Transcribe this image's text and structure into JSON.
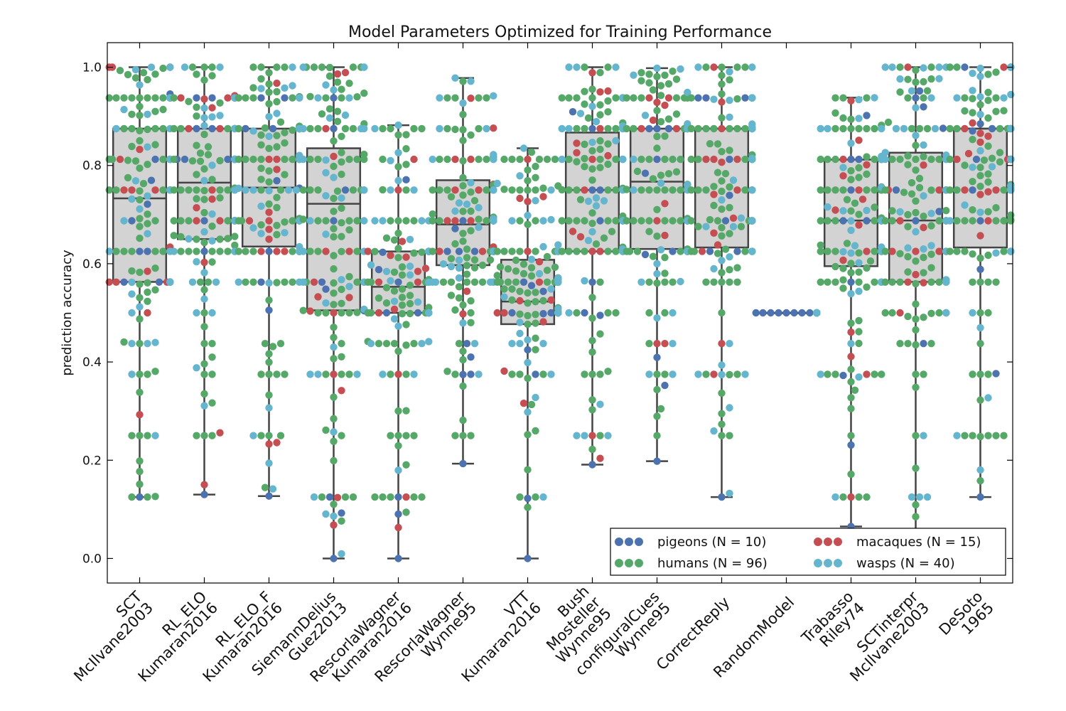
{
  "chart_data": {
    "type": "box-swarm",
    "title": "Model Parameters Optimized for Training Performance",
    "ylabel": "prediction accuracy",
    "xlabel": "",
    "ylim": [
      -0.05,
      1.05
    ],
    "yticks": [
      0.0,
      0.2,
      0.4,
      0.6,
      0.8,
      1.0
    ],
    "ytick_labels": [
      "0.0",
      "0.2",
      "0.4",
      "0.6",
      "0.8",
      "1.0"
    ],
    "grid": false,
    "legend_position": "lower right",
    "legend": [
      {
        "key": "pigeons",
        "label": "pigeons (N = 10)",
        "color": "#4c72b0"
      },
      {
        "key": "macaques",
        "label": "macaques (N = 15)",
        "color": "#c44e52"
      },
      {
        "key": "humans",
        "label": "humans (N = 96)",
        "color": "#55a868"
      },
      {
        "key": "wasps",
        "label": "wasps (N = 40)",
        "color": "#64b5cd"
      }
    ],
    "box_fill": "#d3d3d3",
    "box_edge": "#444444",
    "models": [
      {
        "label": [
          "SCT",
          "McIlvane2003"
        ],
        "whisker_low": 0.125,
        "q1": 0.563,
        "median": 0.733,
        "q3": 0.875,
        "whisker_high": 1.0
      },
      {
        "label": [
          "RL_ELO",
          "Kumaran2016"
        ],
        "whisker_low": 0.13,
        "q1": 0.65,
        "median": 0.765,
        "q3": 0.875,
        "whisker_high": 1.0
      },
      {
        "label": [
          "RL_ELO_F",
          "Kumaran2016"
        ],
        "whisker_low": 0.127,
        "q1": 0.635,
        "median": 0.755,
        "q3": 0.875,
        "whisker_high": 1.0
      },
      {
        "label": [
          "SiemannDelius",
          "Guez2013"
        ],
        "whisker_low": 0.0,
        "q1": 0.505,
        "median": 0.722,
        "q3": 0.835,
        "whisker_high": 1.0
      },
      {
        "label": [
          "RescorlaWagner",
          "Kumaran2016"
        ],
        "whisker_low": 0.0,
        "q1": 0.5,
        "median": 0.553,
        "q3": 0.625,
        "whisker_high": 0.882
      },
      {
        "label": [
          "RescorlaWagner",
          "Wynne95"
        ],
        "whisker_low": 0.193,
        "q1": 0.597,
        "median": 0.68,
        "q3": 0.77,
        "whisker_high": 0.978
      },
      {
        "label": [
          "VTT",
          "Kumaran2016"
        ],
        "whisker_low": 0.0,
        "q1": 0.477,
        "median": 0.523,
        "q3": 0.608,
        "whisker_high": 0.835
      },
      {
        "label": [
          "Bush",
          "Mosteller",
          "Wynne95"
        ],
        "whisker_low": 0.191,
        "q1": 0.625,
        "median": 0.75,
        "q3": 0.867,
        "whisker_high": 1.0
      },
      {
        "label": [
          "configuralCues",
          "Wynne95"
        ],
        "whisker_low": 0.198,
        "q1": 0.63,
        "median": 0.767,
        "q3": 0.875,
        "whisker_high": 0.998
      },
      {
        "label": [
          "CorrectReply"
        ],
        "whisker_low": 0.125,
        "q1": 0.633,
        "median": 0.875,
        "q3": 0.875,
        "whisker_high": 1.0
      },
      {
        "label": [
          "RandomModel"
        ],
        "whisker_low": 0.5,
        "q1": 0.5,
        "median": 0.5,
        "q3": 0.5,
        "whisker_high": 0.5
      },
      {
        "label": [
          "Trabasso",
          "Riley74"
        ],
        "whisker_low": 0.065,
        "q1": 0.595,
        "median": 0.688,
        "q3": 0.812,
        "whisker_high": 0.938
      },
      {
        "label": [
          "SCTinterpr",
          "McIlvane2003"
        ],
        "whisker_low": 0.0,
        "q1": 0.563,
        "median": 0.688,
        "q3": 0.826,
        "whisker_high": 1.0
      },
      {
        "label": [
          "DeSoto",
          "1965"
        ],
        "whisker_low": 0.125,
        "q1": 0.633,
        "median": 0.875,
        "q3": 0.875,
        "whisker_high": 1.0
      }
    ]
  }
}
